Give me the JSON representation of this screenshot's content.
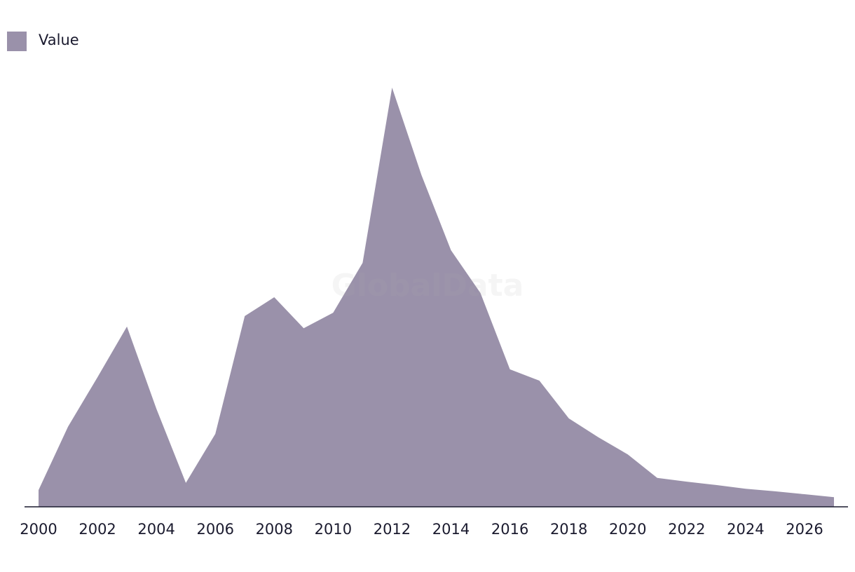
{
  "chart_data": {
    "type": "area",
    "legend_label": "Value",
    "watermark": "GlobalData",
    "color": "#9a91aa",
    "x": [
      2000,
      2001,
      2002,
      2003,
      2004,
      2005,
      2006,
      2007,
      2008,
      2009,
      2010,
      2011,
      2012,
      2013,
      2014,
      2015,
      2016,
      2017,
      2018,
      2019,
      2020,
      2021,
      2022,
      2023,
      2024,
      2025,
      2026,
      2027
    ],
    "values": [
      4.0,
      19.1,
      30.9,
      43.0,
      23.4,
      5.7,
      17.4,
      45.5,
      50.0,
      42.6,
      46.3,
      58.2,
      100,
      79.1,
      61.2,
      51.0,
      32.8,
      30.1,
      21.1,
      16.6,
      12.5,
      6.9,
      6.0,
      5.2,
      4.3,
      3.7,
      3.0,
      2.3
    ],
    "xlim": [
      2000,
      2027
    ],
    "xticks": [
      2000,
      2002,
      2004,
      2006,
      2008,
      2010,
      2012,
      2014,
      2016,
      2018,
      2020,
      2022,
      2024,
      2026
    ],
    "ylim": [
      0,
      100
    ],
    "legend_position": "top-left"
  }
}
